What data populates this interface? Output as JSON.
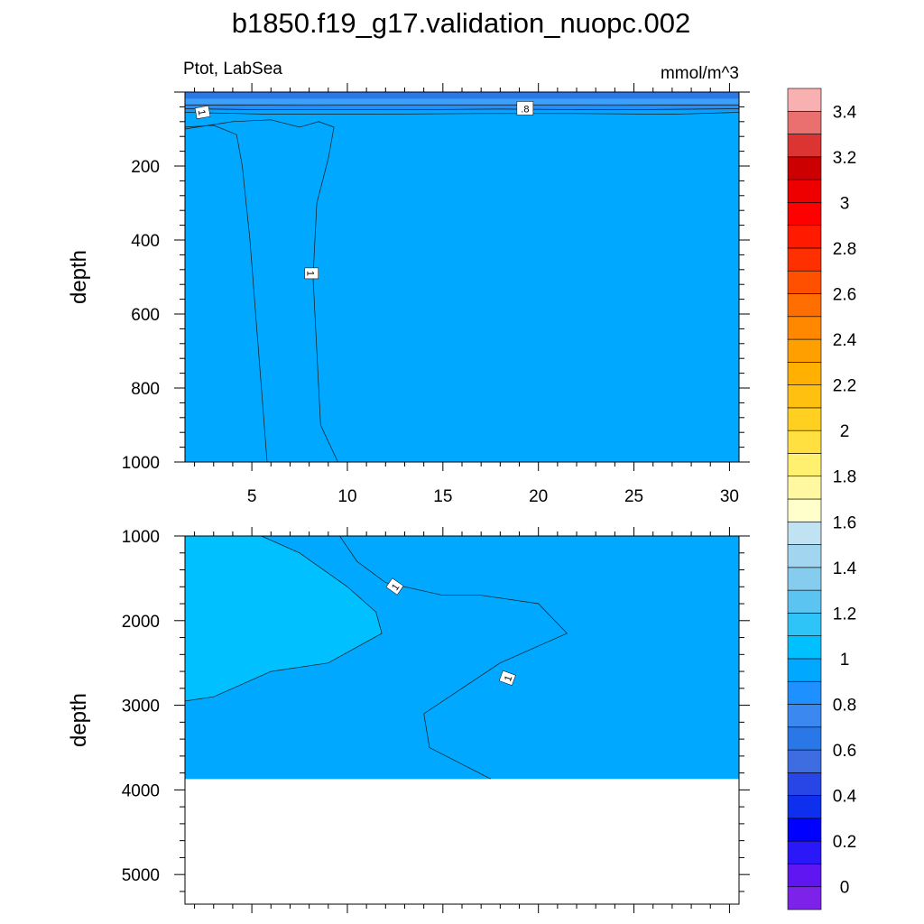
{
  "title": "b1850.f19_g17.validation_nuopc.002",
  "subtitle_left": "Ptot, LabSea",
  "subtitle_right": "mmol/m^3",
  "colors": {
    "band_low": "#1e90ff",
    "band_mid": "#00a8ff",
    "band_high": "#00c0ff",
    "band_top": "#3aa0f8",
    "band_top_dark": "#2a78e8",
    "missing": "#ffffff"
  },
  "chart_data": [
    {
      "type": "heatmap",
      "subtype": "filled-contour",
      "panel": "upper",
      "xlim": [
        1.5,
        30.5
      ],
      "ylim": [
        1000,
        0
      ],
      "ylabel": "depth",
      "xlabel": "",
      "x_ticks": [
        5,
        10,
        15,
        20,
        25,
        30
      ],
      "y_ticks": [
        200,
        400,
        600,
        800,
        1000
      ],
      "regions": [
        {
          "level_range": [
            0.6,
            0.8
          ],
          "polygon": [
            [
              1.5,
              0
            ],
            [
              30.5,
              0
            ],
            [
              30.5,
              30
            ],
            [
              1.5,
              30
            ]
          ]
        },
        {
          "level_range": [
            0.8,
            0.9
          ],
          "polygon": [
            [
              1.5,
              30
            ],
            [
              30.5,
              30
            ],
            [
              30.5,
              50
            ],
            [
              1.5,
              50
            ]
          ]
        },
        {
          "level_range": [
            0.9,
            1.0
          ],
          "polygon": [
            [
              1.5,
              50
            ],
            [
              30.5,
              50
            ],
            [
              30.5,
              1000
            ],
            [
              1.5,
              1000
            ]
          ]
        },
        {
          "level_range": [
            1.0,
            1.2
          ],
          "polygon": [
            [
              1.5,
              100
            ],
            [
              2.5,
              100
            ],
            [
              4,
              120
            ],
            [
              4.8,
              300
            ],
            [
              5.3,
              600
            ],
            [
              5.8,
              1000
            ],
            [
              1.5,
              1000
            ]
          ]
        },
        {
          "level_range": [
            0.9,
            1.0
          ],
          "polygon": [
            [
              11.3,
              140
            ],
            [
              11.8,
              150
            ],
            [
              11.5,
              170
            ],
            [
              11.2,
              155
            ]
          ]
        }
      ],
      "contours": [
        {
          "level": 1.0,
          "points": [
            [
              1.5,
              95
            ],
            [
              3,
              90
            ],
            [
              4.2,
              115
            ],
            [
              4.5,
              200
            ],
            [
              4.9,
              400
            ],
            [
              5.2,
              600
            ],
            [
              5.5,
              800
            ],
            [
              5.8,
              1000
            ]
          ]
        },
        {
          "level": 1.0,
          "points": [
            [
              1.5,
              100
            ],
            [
              4,
              80
            ],
            [
              6,
              75
            ],
            [
              7.5,
              95
            ],
            [
              8.5,
              80
            ],
            [
              9.3,
              95
            ],
            [
              9,
              180
            ],
            [
              8.4,
              300
            ],
            [
              8.2,
              500
            ],
            [
              8.4,
              700
            ],
            [
              8.6,
              900
            ],
            [
              9.5,
              1000
            ]
          ]
        },
        {
          "level": 0.8,
          "points": [
            [
              1.5,
              55
            ],
            [
              6,
              60
            ],
            [
              11,
              60
            ],
            [
              17,
              58
            ],
            [
              22,
              58
            ],
            [
              27,
              60
            ],
            [
              30.5,
              55
            ]
          ]
        },
        {
          "level": 0.8,
          "points": [
            [
              1.5,
              45
            ],
            [
              6,
              48
            ],
            [
              12,
              48
            ],
            [
              18,
              46
            ],
            [
              24,
              48
            ],
            [
              30.5,
              45
            ]
          ]
        },
        {
          "level": 0.8,
          "points": [
            [
              1.5,
              35
            ],
            [
              8,
              36
            ],
            [
              16,
              35
            ],
            [
              24,
              36
            ],
            [
              30.5,
              35
            ]
          ]
        }
      ],
      "contour_labels": [
        {
          "text": "1",
          "x": 2.4,
          "y": 55,
          "angle": 80
        },
        {
          "text": ".8",
          "x": 19.3,
          "y": 45,
          "angle": 0
        },
        {
          "text": "1",
          "x": 8.1,
          "y": 490,
          "angle": 90
        }
      ]
    },
    {
      "type": "heatmap",
      "subtype": "filled-contour",
      "panel": "lower",
      "xlim": [
        1.5,
        30.5
      ],
      "ylim": [
        5350,
        1000
      ],
      "ylabel": "depth",
      "xlabel": "",
      "x_ticks": [
        5,
        10,
        15,
        20,
        25,
        30
      ],
      "x_tick_labels_shown": false,
      "y_ticks": [
        1000,
        2000,
        3000,
        4000,
        5000
      ],
      "bottom_depth": 3870,
      "regions": [
        {
          "level_range": [
            0.9,
            1.0
          ],
          "polygon": [
            [
              1.5,
              1000
            ],
            [
              30.5,
              1000
            ],
            [
              30.5,
              3870
            ],
            [
              1.5,
              3870
            ]
          ]
        },
        {
          "level_range": [
            1.0,
            1.1
          ],
          "polygon": [
            [
              1.5,
              1000
            ],
            [
              9.6,
              1000
            ],
            [
              10.5,
              1300
            ],
            [
              12,
              1550
            ],
            [
              15,
              1700
            ],
            [
              17,
              1700
            ],
            [
              20,
              1800
            ],
            [
              21.5,
              2150
            ],
            [
              18,
              2500
            ],
            [
              16,
              2800
            ],
            [
              14,
              3100
            ],
            [
              14.3,
              3500
            ],
            [
              17.5,
              3870
            ],
            [
              1.5,
              3870
            ]
          ]
        },
        {
          "level_range": [
            1.1,
            1.2
          ],
          "polygon": [
            [
              1.5,
              1000
            ],
            [
              5.5,
              1000
            ],
            [
              7.5,
              1200
            ],
            [
              10,
              1600
            ],
            [
              11.5,
              1900
            ],
            [
              11.8,
              2150
            ],
            [
              9,
              2500
            ],
            [
              6,
              2600
            ],
            [
              3,
              2900
            ],
            [
              1.5,
              2950
            ]
          ]
        }
      ],
      "contours": [
        {
          "level": 1.1,
          "points": [
            [
              5.5,
              1000
            ],
            [
              7.5,
              1200
            ],
            [
              10,
              1600
            ],
            [
              11.5,
              1900
            ],
            [
              11.8,
              2150
            ],
            [
              9,
              2500
            ],
            [
              6,
              2600
            ],
            [
              3,
              2900
            ],
            [
              1.5,
              2950
            ]
          ]
        },
        {
          "level": 1.0,
          "points": [
            [
              9.6,
              1000
            ],
            [
              10.5,
              1300
            ],
            [
              12,
              1550
            ],
            [
              15,
              1700
            ],
            [
              17,
              1700
            ],
            [
              20,
              1800
            ],
            [
              21.5,
              2150
            ],
            [
              18,
              2500
            ],
            [
              16,
              2800
            ],
            [
              14,
              3100
            ],
            [
              14.3,
              3500
            ],
            [
              17.5,
              3870
            ]
          ]
        }
      ],
      "contour_labels": [
        {
          "text": "1",
          "x": 12.5,
          "y": 1600,
          "angle": -55
        },
        {
          "text": "1",
          "x": 18.4,
          "y": 2680,
          "angle": -70
        }
      ]
    }
  ],
  "colorbar": {
    "labels": [
      "0",
      "0.2",
      "0.4",
      "0.6",
      "0.8",
      "1",
      "1.2",
      "1.4",
      "1.6",
      "1.8",
      "2",
      "2.2",
      "2.4",
      "2.6",
      "2.8",
      "3",
      "3.2",
      "3.4"
    ],
    "colors": [
      "#7d22e8",
      "#5f16f0",
      "#2a18f8",
      "#0000ff",
      "#0f2fee",
      "#2845e6",
      "#3e6de2",
      "#2a78e8",
      "#3a88f0",
      "#1e90ff",
      "#00a8ff",
      "#00c0ff",
      "#2ec4f8",
      "#5cc4f0",
      "#86ccee",
      "#a2d6f0",
      "#c0e2f2",
      "#ffffcc",
      "#fff8a0",
      "#fff070",
      "#ffe040",
      "#ffd020",
      "#ffc010",
      "#ffb000",
      "#ffa000",
      "#ff8800",
      "#ff6e00",
      "#ff5000",
      "#ff3000",
      "#ff1a00",
      "#ff0000",
      "#ee0000",
      "#cc0000",
      "#dc3333",
      "#ea7070",
      "#f8b0b0"
    ]
  }
}
